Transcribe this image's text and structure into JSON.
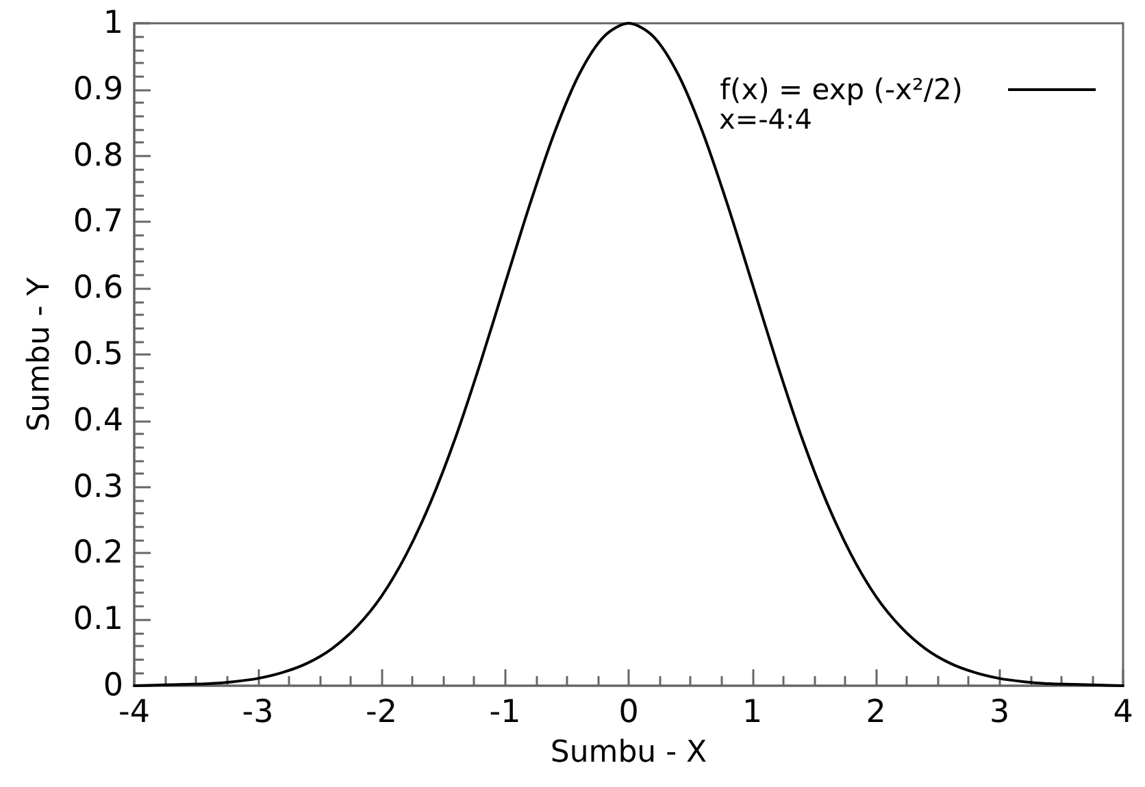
{
  "chart_data": {
    "type": "line",
    "xlabel": "Sumbu - X",
    "ylabel": "Sumbu - Y",
    "annotations": [
      "x=-4:4"
    ],
    "x": [
      -4,
      -3.8,
      -3.6,
      -3.4,
      -3.2,
      -3,
      -2.8,
      -2.6,
      -2.4,
      -2.2,
      -2,
      -1.8,
      -1.6,
      -1.4,
      -1.2,
      -1,
      -0.8,
      -0.6,
      -0.4,
      -0.2,
      0,
      0.2,
      0.4,
      0.6,
      0.8,
      1,
      1.2,
      1.4,
      1.6,
      1.8,
      2,
      2.2,
      2.4,
      2.6,
      2.8,
      3,
      3.2,
      3.4,
      3.6,
      3.8,
      4
    ],
    "series": [
      {
        "name": "f(x) = exp (-x²/2)",
        "color": "#000000",
        "values": [
          0.0,
          0.001,
          0.002,
          0.003,
          0.006,
          0.011,
          0.02,
          0.034,
          0.056,
          0.089,
          0.135,
          0.198,
          0.278,
          0.375,
          0.487,
          0.607,
          0.726,
          0.835,
          0.923,
          0.98,
          1.0,
          0.98,
          0.923,
          0.835,
          0.726,
          0.607,
          0.487,
          0.375,
          0.278,
          0.198,
          0.135,
          0.089,
          0.056,
          0.034,
          0.02,
          0.011,
          0.006,
          0.003,
          0.002,
          0.001,
          0.0
        ]
      }
    ],
    "xlim": [
      -4,
      4
    ],
    "xticks": [
      -4,
      {
        "value": -3.75,
        "label": null
      },
      {
        "value": -3.5,
        "label": null
      },
      {
        "value": -3.25,
        "label": null
      },
      -3,
      {
        "value": -2.75,
        "label": null
      },
      {
        "value": -2.5,
        "label": null
      },
      {
        "value": -2.25,
        "label": null
      },
      -2,
      {
        "value": -1.75,
        "label": null
      },
      {
        "value": -1.5,
        "label": null
      },
      {
        "value": -1.25,
        "label": null
      },
      -1,
      {
        "value": -0.75,
        "label": null
      },
      {
        "value": -0.5,
        "label": null
      },
      {
        "value": -0.25,
        "label": null
      },
      0,
      {
        "value": 0.25,
        "label": null
      },
      {
        "value": 0.5,
        "label": null
      },
      {
        "value": 0.75,
        "label": null
      },
      1,
      {
        "value": 1.25,
        "label": null
      },
      {
        "value": 1.5,
        "label": null
      },
      {
        "value": 1.75,
        "label": null
      },
      2,
      {
        "value": 2.25,
        "label": null
      },
      {
        "value": 2.5,
        "label": null
      },
      {
        "value": 2.75,
        "label": null
      },
      3,
      {
        "value": 3.25,
        "label": null
      },
      {
        "value": 3.5,
        "label": null
      },
      {
        "value": 3.75,
        "label": null
      },
      4
    ],
    "ylim": [
      0,
      1
    ],
    "yticks": [
      0,
      {
        "value": 0.02,
        "label": null
      },
      {
        "value": 0.04,
        "label": null
      },
      {
        "value": 0.06,
        "label": null
      },
      {
        "value": 0.08,
        "label": null
      },
      0.1,
      {
        "value": 0.12,
        "label": null
      },
      {
        "value": 0.14,
        "label": null
      },
      {
        "value": 0.16,
        "label": null
      },
      {
        "value": 0.18,
        "label": null
      },
      0.2,
      {
        "value": 0.22,
        "label": null
      },
      {
        "value": 0.24,
        "label": null
      },
      {
        "value": 0.26,
        "label": null
      },
      {
        "value": 0.28,
        "label": null
      },
      0.3,
      {
        "value": 0.32,
        "label": null
      },
      {
        "value": 0.34,
        "label": null
      },
      {
        "value": 0.36,
        "label": null
      },
      {
        "value": 0.38,
        "label": null
      },
      0.4,
      {
        "value": 0.42,
        "label": null
      },
      {
        "value": 0.44,
        "label": null
      },
      {
        "value": 0.46,
        "label": null
      },
      {
        "value": 0.48,
        "label": null
      },
      0.5,
      {
        "value": 0.52,
        "label": null
      },
      {
        "value": 0.54,
        "label": null
      },
      {
        "value": 0.56,
        "label": null
      },
      {
        "value": 0.58,
        "label": null
      },
      0.6,
      {
        "value": 0.62,
        "label": null
      },
      {
        "value": 0.64,
        "label": null
      },
      {
        "value": 0.66,
        "label": null
      },
      {
        "value": 0.68,
        "label": null
      },
      0.7,
      {
        "value": 0.72,
        "label": null
      },
      {
        "value": 0.74,
        "label": null
      },
      {
        "value": 0.76,
        "label": null
      },
      {
        "value": 0.78,
        "label": null
      },
      0.8,
      {
        "value": 0.82,
        "label": null
      },
      {
        "value": 0.84,
        "label": null
      },
      {
        "value": 0.86,
        "label": null
      },
      {
        "value": 0.88,
        "label": null
      },
      0.9,
      {
        "value": 0.92,
        "label": null
      },
      {
        "value": 0.94,
        "label": null
      },
      {
        "value": 0.96,
        "label": null
      },
      {
        "value": 0.98,
        "label": null
      },
      1
    ],
    "grid": false,
    "legend": "top right",
    "marker": "none",
    "line_style": "solid"
  }
}
